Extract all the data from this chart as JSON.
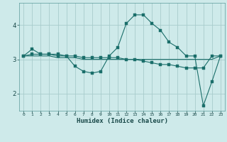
{
  "xlabel": "Humidex (Indice chaleur)",
  "ylabel": "",
  "background_color": "#ceeaea",
  "grid_color": "#a8cccc",
  "line_color": "#1a6e6a",
  "xlim": [
    -0.5,
    23.5
  ],
  "ylim": [
    1.5,
    4.65
  ],
  "yticks": [
    2,
    3,
    4
  ],
  "xtick_labels": [
    "0",
    "1",
    "2",
    "3",
    "4",
    "5",
    "6",
    "7",
    "8",
    "9",
    "10",
    "11",
    "12",
    "13",
    "14",
    "15",
    "16",
    "17",
    "18",
    "19",
    "20",
    "21",
    "22",
    "23"
  ],
  "line1_x": [
    0,
    1,
    2,
    3,
    4,
    5,
    6,
    7,
    8,
    9,
    10,
    11,
    12,
    13,
    14,
    15,
    16,
    17,
    18,
    19,
    20,
    21,
    22,
    23
  ],
  "line1_y": [
    3.1,
    3.3,
    3.15,
    3.15,
    3.1,
    3.1,
    2.8,
    2.65,
    2.6,
    2.65,
    3.1,
    3.35,
    4.05,
    4.3,
    4.3,
    4.05,
    3.85,
    3.5,
    3.35,
    3.1,
    3.1,
    1.65,
    2.35,
    3.1
  ],
  "line2_x": [
    0,
    1,
    2,
    3,
    4,
    5,
    6,
    7,
    8,
    9,
    10,
    11,
    12,
    13,
    14,
    15,
    16,
    17,
    18,
    19,
    20,
    21,
    22,
    23
  ],
  "line2_y": [
    3.1,
    3.15,
    3.15,
    3.15,
    3.15,
    3.1,
    3.1,
    3.05,
    3.05,
    3.05,
    3.05,
    3.05,
    3.0,
    3.0,
    2.95,
    2.9,
    2.85,
    2.85,
    2.8,
    2.75,
    2.75,
    2.75,
    3.1,
    3.1
  ],
  "line3_x": [
    0,
    1,
    2,
    3,
    4,
    5,
    6,
    7,
    8,
    9,
    10,
    11,
    12,
    13,
    14,
    15,
    16,
    17,
    18,
    19,
    20,
    21,
    22,
    23
  ],
  "line3_y": [
    3.1,
    3.1,
    3.1,
    3.1,
    3.05,
    3.05,
    3.05,
    3.0,
    3.0,
    3.0,
    3.0,
    3.0,
    3.0,
    3.0,
    3.0,
    3.0,
    3.0,
    3.0,
    3.0,
    3.0,
    3.0,
    3.0,
    3.0,
    3.1
  ]
}
